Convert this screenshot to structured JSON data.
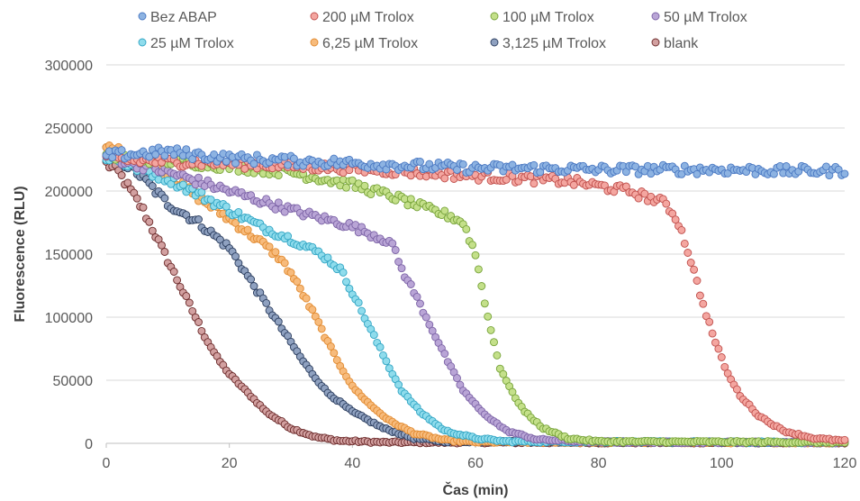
{
  "chart_data": {
    "type": "scatter",
    "xlabel": "Čas (min)",
    "ylabel": "Fluorescence (RLU)",
    "xlim": [
      0,
      120
    ],
    "ylim": [
      0,
      300000
    ],
    "x_ticks": [
      "0",
      "20",
      "40",
      "60",
      "80",
      "100",
      "120"
    ],
    "y_ticks": [
      "0",
      "50000",
      "100000",
      "150000",
      "200000",
      "250000",
      "300000"
    ],
    "grid": "horizontal",
    "legend_position": "top",
    "series": [
      {
        "name": "Bez ABAP",
        "color": "#8db3e2",
        "stroke": "#4a78c2",
        "points": [
          [
            0,
            228000
          ],
          [
            10,
            231000
          ],
          [
            20,
            226000
          ],
          [
            30,
            224000
          ],
          [
            40,
            222000
          ],
          [
            50,
            220000
          ],
          [
            60,
            218000
          ],
          [
            70,
            218000
          ],
          [
            80,
            217000
          ],
          [
            90,
            217000
          ],
          [
            100,
            217000
          ],
          [
            110,
            216000
          ],
          [
            120,
            216000
          ]
        ]
      },
      {
        "name": "200 µM Trolox",
        "color": "#f4a6a0",
        "stroke": "#c0504d",
        "points": [
          [
            0,
            225000
          ],
          [
            20,
            222000
          ],
          [
            40,
            218000
          ],
          [
            60,
            212000
          ],
          [
            75,
            208000
          ],
          [
            85,
            200000
          ],
          [
            91,
            190000
          ],
          [
            93,
            175000
          ],
          [
            95,
            145000
          ],
          [
            97,
            110000
          ],
          [
            99,
            80000
          ],
          [
            101,
            55000
          ],
          [
            103,
            38000
          ],
          [
            106,
            22000
          ],
          [
            110,
            10000
          ],
          [
            115,
            4000
          ],
          [
            120,
            2000
          ]
        ]
      },
      {
        "name": "100 µM Trolox",
        "color": "#c4e08a",
        "stroke": "#77a33a",
        "points": [
          [
            0,
            228000
          ],
          [
            15,
            222000
          ],
          [
            30,
            215000
          ],
          [
            40,
            205000
          ],
          [
            47,
            195000
          ],
          [
            52,
            186000
          ],
          [
            56,
            180000
          ],
          [
            58,
            175000
          ],
          [
            60,
            150000
          ],
          [
            61,
            125000
          ],
          [
            62,
            100000
          ],
          [
            63,
            80000
          ],
          [
            64,
            60000
          ],
          [
            66,
            40000
          ],
          [
            68,
            25000
          ],
          [
            71,
            12000
          ],
          [
            75,
            4000
          ],
          [
            80,
            1500
          ],
          [
            120,
            800
          ]
        ]
      },
      {
        "name": "50 µM Trolox",
        "color": "#b9a5d6",
        "stroke": "#7c63a6",
        "points": [
          [
            0,
            228000
          ],
          [
            10,
            215000
          ],
          [
            20,
            200000
          ],
          [
            30,
            185000
          ],
          [
            40,
            172000
          ],
          [
            46,
            160000
          ],
          [
            47,
            152000
          ],
          [
            48,
            138000
          ],
          [
            50,
            120000
          ],
          [
            52,
            100000
          ],
          [
            54,
            80000
          ],
          [
            56,
            60000
          ],
          [
            58,
            42000
          ],
          [
            61,
            25000
          ],
          [
            65,
            10000
          ],
          [
            70,
            3000
          ],
          [
            80,
            1000
          ],
          [
            120,
            700
          ]
        ]
      },
      {
        "name": "25 µM Trolox",
        "color": "#8fdcec",
        "stroke": "#31a5c4",
        "points": [
          [
            0,
            227000
          ],
          [
            10,
            210000
          ],
          [
            20,
            185000
          ],
          [
            25,
            172000
          ],
          [
            30,
            162000
          ],
          [
            35,
            150000
          ],
          [
            38,
            138000
          ],
          [
            40,
            120000
          ],
          [
            42,
            100000
          ],
          [
            44,
            80000
          ],
          [
            46,
            60000
          ],
          [
            48,
            42000
          ],
          [
            51,
            25000
          ],
          [
            55,
            10000
          ],
          [
            60,
            4000
          ],
          [
            65,
            1500
          ],
          [
            120,
            700
          ]
        ]
      },
      {
        "name": "6,25 µM Trolox",
        "color": "#f7bb7c",
        "stroke": "#e18a30",
        "points": [
          [
            0,
            235000
          ],
          [
            8,
            220000
          ],
          [
            15,
            195000
          ],
          [
            20,
            178000
          ],
          [
            25,
            160000
          ],
          [
            28,
            148000
          ],
          [
            30,
            135000
          ],
          [
            32,
            118000
          ],
          [
            34,
            100000
          ],
          [
            36,
            80000
          ],
          [
            38,
            62000
          ],
          [
            40,
            45000
          ],
          [
            43,
            30000
          ],
          [
            46,
            18000
          ],
          [
            50,
            8000
          ],
          [
            55,
            2500
          ],
          [
            60,
            1000
          ],
          [
            120,
            500
          ]
        ]
      },
      {
        "name": "3,125 µM Trolox",
        "color": "#8fa1c0",
        "stroke": "#2b3d5e",
        "points": [
          [
            0,
            232000
          ],
          [
            5,
            215000
          ],
          [
            10,
            190000
          ],
          [
            15,
            175000
          ],
          [
            20,
            155000
          ],
          [
            22,
            140000
          ],
          [
            24,
            125000
          ],
          [
            26,
            110000
          ],
          [
            28,
            95000
          ],
          [
            30,
            80000
          ],
          [
            32,
            65000
          ],
          [
            34,
            52000
          ],
          [
            36,
            40000
          ],
          [
            40,
            25000
          ],
          [
            45,
            12000
          ],
          [
            50,
            4000
          ],
          [
            55,
            1500
          ],
          [
            120,
            500
          ]
        ]
      },
      {
        "name": "blank",
        "color": "#d2a0a0",
        "stroke": "#6b2a2a",
        "points": [
          [
            0,
            222000
          ],
          [
            2,
            215000
          ],
          [
            4,
            200000
          ],
          [
            6,
            185000
          ],
          [
            8,
            165000
          ],
          [
            10,
            145000
          ],
          [
            12,
            125000
          ],
          [
            14,
            105000
          ],
          [
            16,
            85000
          ],
          [
            18,
            68000
          ],
          [
            20,
            55000
          ],
          [
            23,
            40000
          ],
          [
            26,
            25000
          ],
          [
            30,
            12000
          ],
          [
            34,
            5000
          ],
          [
            38,
            2000
          ],
          [
            45,
            800
          ],
          [
            120,
            300
          ]
        ]
      }
    ]
  }
}
